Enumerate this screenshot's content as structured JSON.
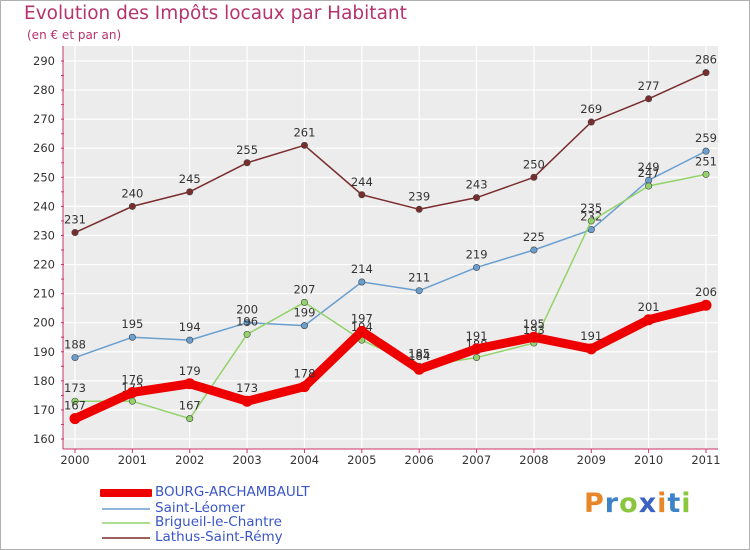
{
  "chart_data": {
    "type": "line",
    "title": "Evolution des Impôts locaux par Habitant",
    "subtitle": "(en € et par an)",
    "xlabel": "",
    "ylabel": "",
    "x": [
      "2000",
      "2001",
      "2002",
      "2003",
      "2004",
      "2005",
      "2006",
      "2007",
      "2008",
      "2009",
      "2010",
      "2011"
    ],
    "ylim": [
      160,
      290
    ],
    "yticks": [
      160,
      170,
      180,
      190,
      200,
      210,
      220,
      230,
      240,
      250,
      260,
      270,
      280,
      290
    ],
    "grid": true,
    "legend_position": "bottom-left",
    "series": [
      {
        "name": "Lathus-Saint-Rémy",
        "color": "#7a2d2d",
        "values": [
          231,
          240,
          245,
          255,
          261,
          244,
          239,
          243,
          250,
          269,
          277,
          286
        ]
      },
      {
        "name": "Saint-Léomer",
        "color": "#6a9fd0",
        "values": [
          188,
          195,
          194,
          200,
          199,
          214,
          211,
          219,
          225,
          232,
          249,
          259
        ]
      },
      {
        "name": "Brigueil-le-Chantre",
        "color": "#93d36a",
        "values": [
          173,
          173,
          167,
          196,
          207,
          194,
          185,
          188,
          193,
          235,
          247,
          251
        ]
      },
      {
        "name": "BOURG-ARCHAMBAULT",
        "color": "#ee0000",
        "values": [
          167,
          176,
          179,
          173,
          178,
          197,
          184,
          191,
          195,
          191,
          201,
          206
        ]
      }
    ]
  },
  "legend": {
    "items": [
      {
        "label": "BOURG-ARCHAMBAULT",
        "color": "#ee0000"
      },
      {
        "label": "Saint-Léomer",
        "color": "#6a9fd0"
      },
      {
        "label": "Brigueil-le-Chantre",
        "color": "#93d36a"
      },
      {
        "label": "Lathus-Saint-Rémy",
        "color": "#7a2d2d"
      }
    ]
  },
  "logo": {
    "p": "P",
    "r": "r",
    "o": "o",
    "x": "x",
    "i1": "i",
    "t": "t",
    "i2": "i"
  }
}
